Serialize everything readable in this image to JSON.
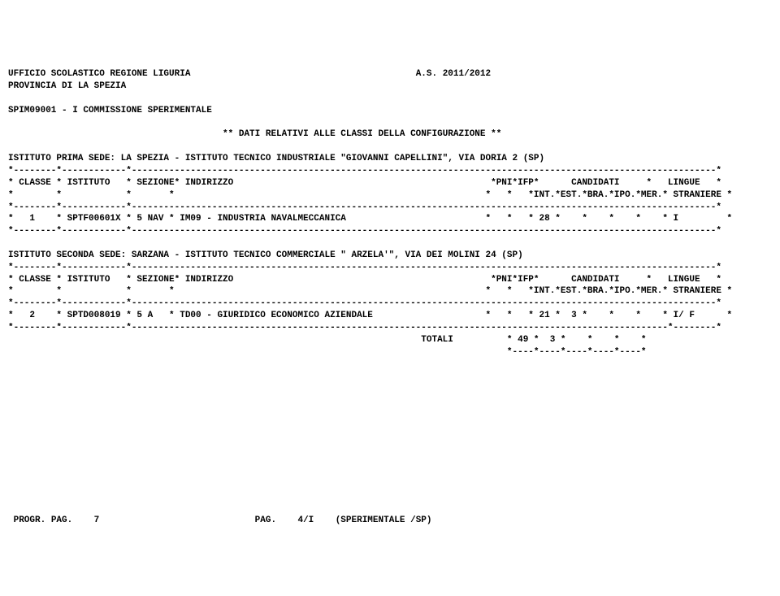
{
  "header": {
    "line1_left": "UFFICIO SCOLASTICO REGIONE LIGURIA",
    "line1_right": "A.S. 2011/2012",
    "line2": "PROVINCIA DI LA SPEZIA",
    "line3": "SPIM09001 - I COMMISSIONE SPERIMENTALE",
    "title_center": "** DATI RELATIVI ALLE CLASSI DELLA CONFIGURAZIONE **"
  },
  "sede1": {
    "label": "ISTITUTO PRIMA SEDE: LA SPEZIA - ISTITUTO TECNICO INDUSTRIALE \"GIOVANNI CAPELLINI\", VIA DORIA 2 (SP)",
    "tbl_head1": "* CLASSE * ISTITUTO   * SEZIONE* INDIRIZZO                                                *PNI*IFP*      CANDIDATI     *   LINGUE   *",
    "tbl_head2": "*        *            *       *                                                          *   *   *INT.*EST.*BRA.*IPO.*MER.* STRANIERE *",
    "row": "*   1    * SPTF00601X * 5 NAV * IM09 - INDUSTRIA NAVALMECCANICA                          *   *   * 28 *    *    *    *    * I         *"
  },
  "sede2": {
    "label": "ISTITUTO SECONDA SEDE: SARZANA - ISTITUTO TECNICO COMMERCIALE \" ARZELA'\", VIA DEI MOLINI 24 (SP)",
    "tbl_head1": "* CLASSE * ISTITUTO   * SEZIONE* INDIRIZZO                                                *PNI*IFP*      CANDIDATI     *   LINGUE   *",
    "tbl_head2": "*        *            *       *                                                          *   *   *INT.*EST.*BRA.*IPO.*MER.* STRANIERE *",
    "row": "*   2    * SPTD008019 * 5 A   * TD00 - GIURIDICO ECONOMICO AZIENDALE                     *   *   * 21 *  3 *    *    *    * I/ F      *"
  },
  "totals": {
    "line1": "                                                                             TOTALI          * 49 *  3 *    *    *    *",
    "line2": "                                                                                             *----*----*----*----*----*"
  },
  "sep": {
    "full": "*--------*------------*-------------------------------------------------------------------------------------------------------------*",
    "hdr": "*--------*------------*----------------------------------------------------------------------------------------------------*--------*"
  },
  "footer": {
    "left": "PROGR. PAG.    7",
    "right": "PAG.    4/I    (SPERIMENTALE /SP)"
  }
}
